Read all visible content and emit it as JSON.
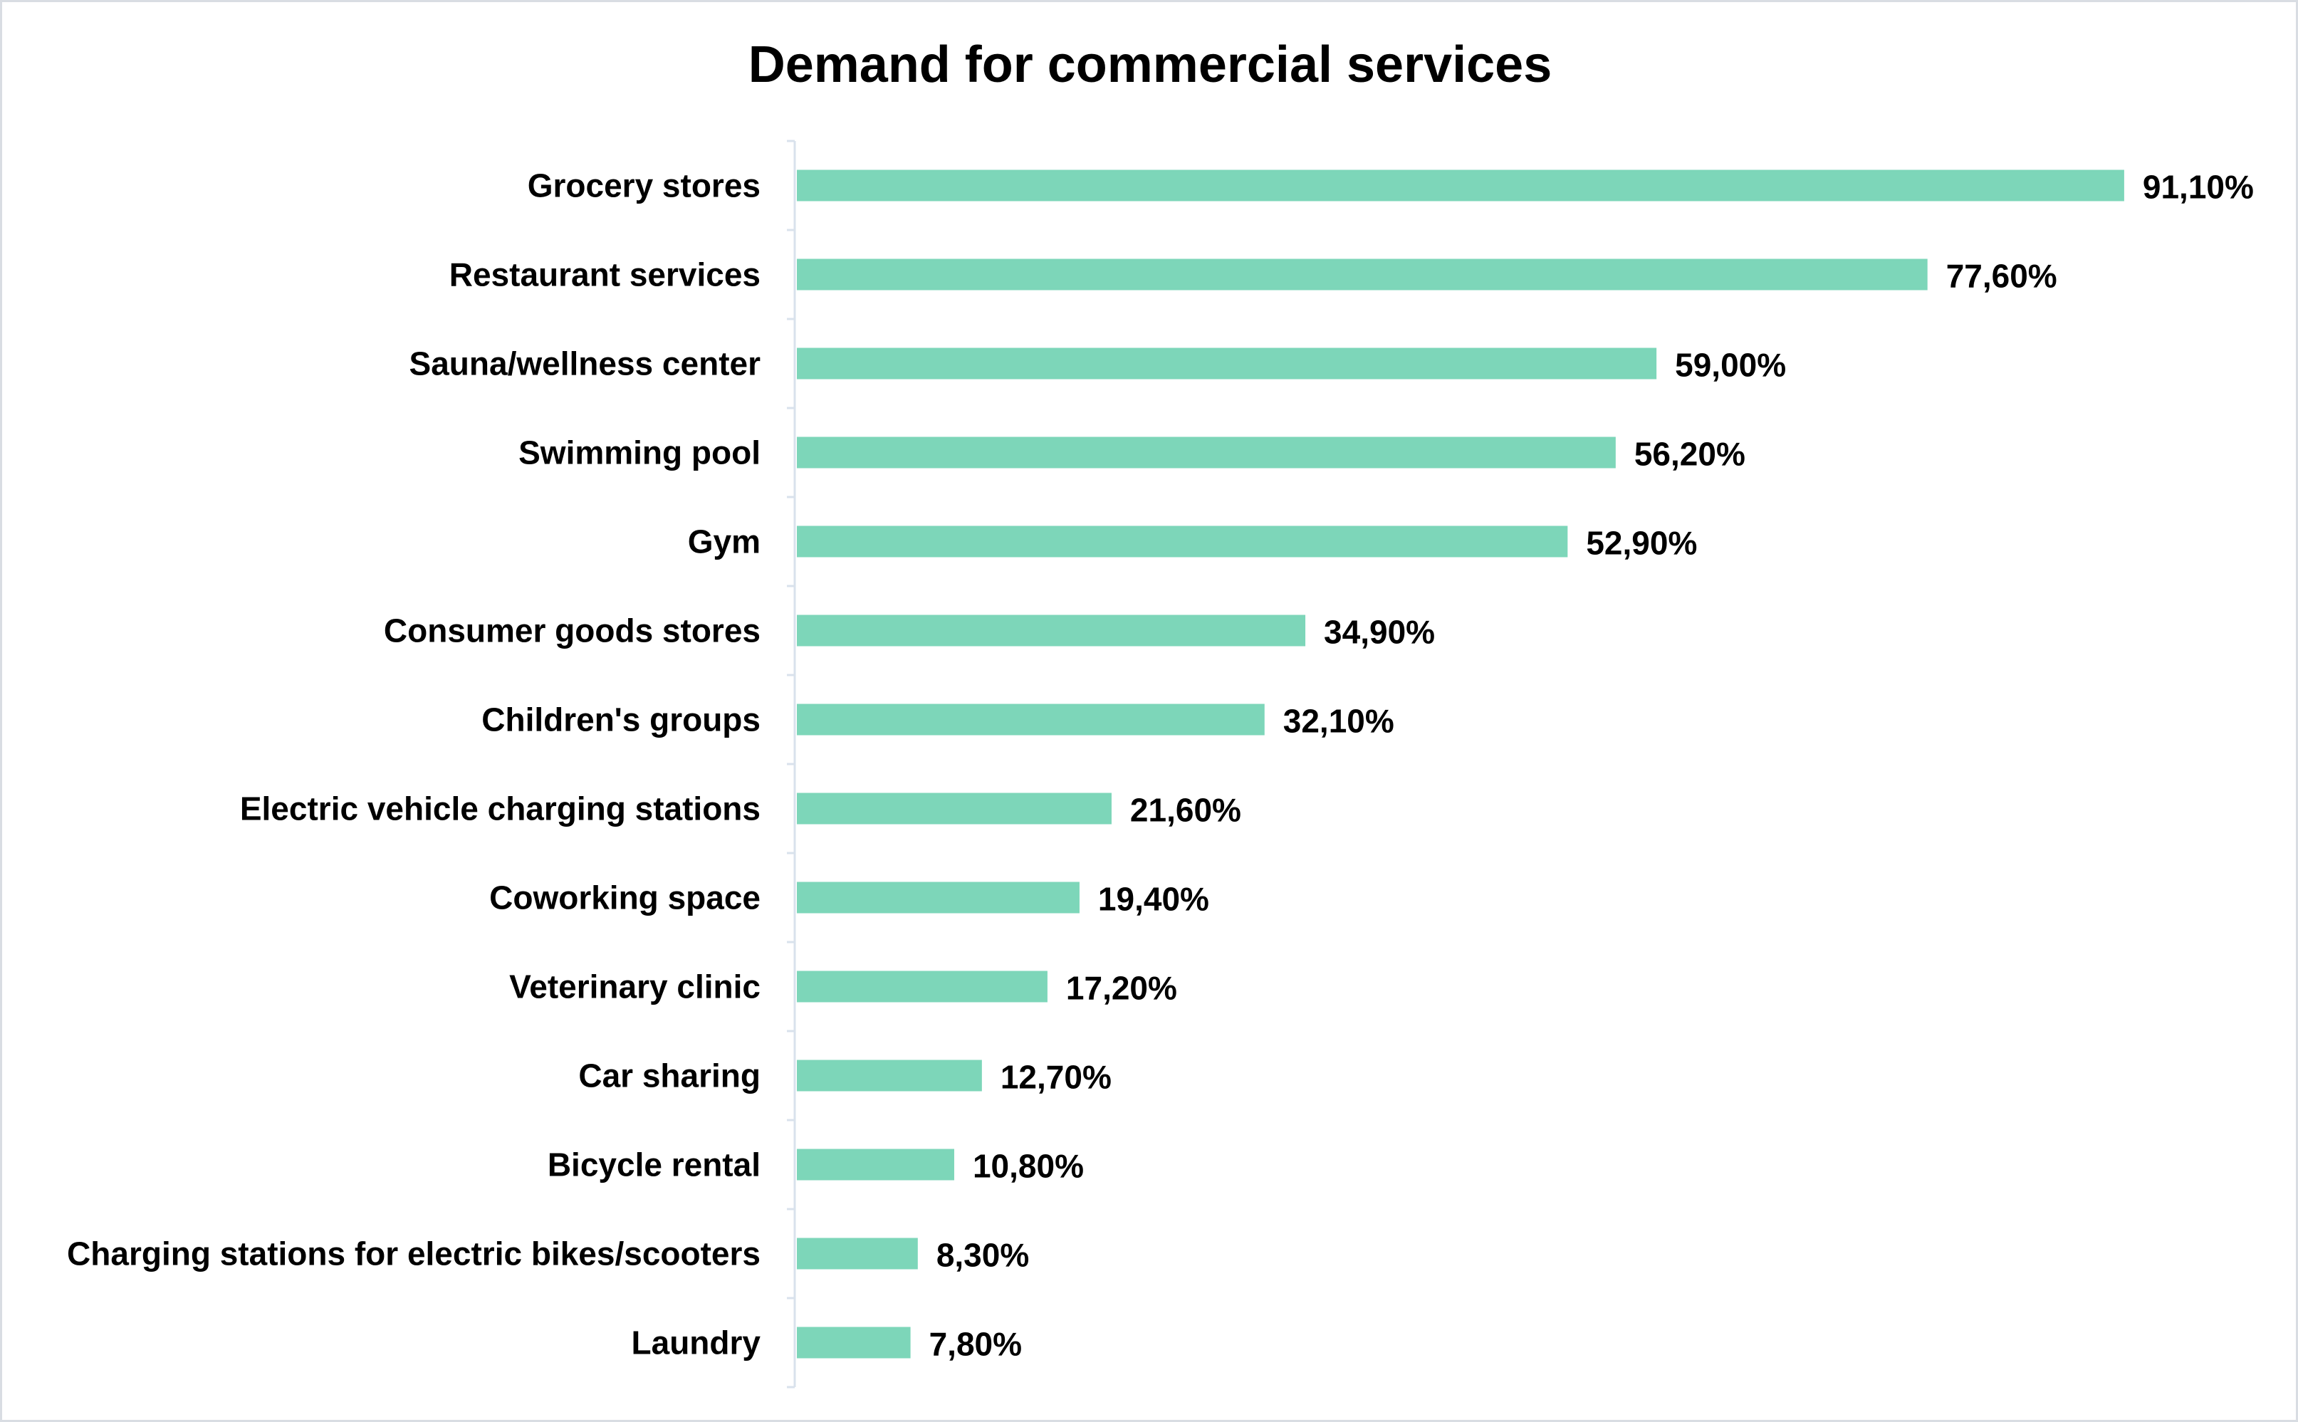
{
  "chart_data": {
    "type": "bar",
    "orientation": "horizontal",
    "title": "Demand for commercial services",
    "xlabel": "",
    "ylabel": "",
    "xlim": [
      0,
      100
    ],
    "grid": false,
    "legend": "none",
    "bar_color": "#7dd6b9",
    "axis_color": "#d9e2ec",
    "categories": [
      "Grocery stores",
      "Restaurant services",
      "Sauna/wellness center",
      "Swimming pool",
      "Gym",
      "Consumer goods stores",
      "Children's groups",
      "Electric vehicle charging stations",
      "Coworking space",
      "Veterinary clinic",
      "Car sharing",
      "Bicycle rental",
      "Charging stations for electric bikes/scooters",
      "Laundry"
    ],
    "values": [
      91.1,
      77.6,
      59.0,
      56.2,
      52.9,
      34.9,
      32.1,
      21.6,
      19.4,
      17.2,
      12.7,
      10.8,
      8.3,
      7.8
    ],
    "value_labels": [
      "91,10%",
      "77,60%",
      "59,00%",
      "56,20%",
      "52,90%",
      "34,90%",
      "32,10%",
      "21,60%",
      "19,40%",
      "17,20%",
      "12,70%",
      "10,80%",
      "8,30%",
      "7,80%"
    ]
  }
}
